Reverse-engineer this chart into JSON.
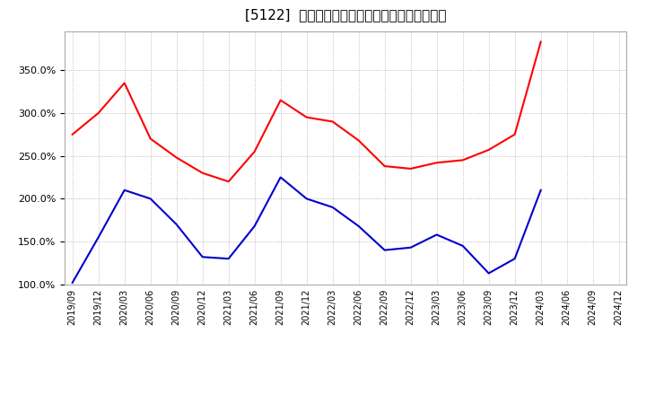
{
  "title": "[5122]  有利子負債キャッシュフロー比率の推移",
  "red_color": "#ff0000",
  "blue_color": "#0000cc",
  "background_color": "#ffffff",
  "plot_bg_color": "#ffffff",
  "grid_color": "#999999",
  "ylim": [
    100.0,
    395.0
  ],
  "yticks": [
    100.0,
    150.0,
    200.0,
    250.0,
    300.0,
    350.0
  ],
  "dates": [
    "2019/09",
    "2019/12",
    "2020/03",
    "2020/06",
    "2020/09",
    "2020/12",
    "2021/03",
    "2021/06",
    "2021/09",
    "2021/12",
    "2022/03",
    "2022/06",
    "2022/09",
    "2022/12",
    "2023/03",
    "2023/06",
    "2023/09",
    "2023/12",
    "2024/03",
    "2024/06",
    "2024/09",
    "2024/12"
  ],
  "red_values": [
    275.0,
    300.0,
    335.0,
    270.0,
    248.0,
    230.0,
    220.0,
    255.0,
    315.0,
    295.0,
    290.0,
    268.0,
    238.0,
    235.0,
    242.0,
    245.0,
    257.0,
    275.0,
    383.0,
    null,
    null,
    null
  ],
  "blue_values": [
    102.0,
    155.0,
    210.0,
    200.0,
    170.0,
    132.0,
    130.0,
    168.0,
    225.0,
    200.0,
    190.0,
    168.0,
    140.0,
    143.0,
    158.0,
    145.0,
    113.0,
    130.0,
    210.0,
    null,
    null,
    null
  ]
}
